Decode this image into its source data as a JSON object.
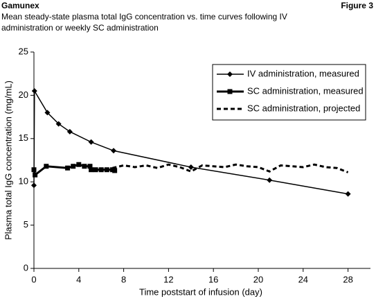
{
  "header": {
    "title": "Gamunex",
    "figure": "Figure 3",
    "subtitle": [
      "Mean steady-state plasma total IgG concentration vs. time curves following IV",
      "administration or weekly SC administration"
    ]
  },
  "chart_data": {
    "type": "line",
    "x_label": "Time poststart of infusion (day)",
    "y_label": "Plasma total IgG concentration (mg/mL)",
    "xlim": [
      0,
      30
    ],
    "xticks": [
      0,
      4,
      8,
      12,
      16,
      20,
      24,
      28
    ],
    "ylim": [
      0,
      25
    ],
    "yticks": [
      0,
      5,
      10,
      15,
      20,
      25
    ],
    "legend": "upper right",
    "series": [
      {
        "name": "IV administration, measured",
        "color": "#000000",
        "marker": "diamond",
        "dashed": false,
        "x": [
          0,
          0.05,
          1.2,
          2.2,
          3.2,
          5.1,
          7.1,
          14,
          21,
          28
        ],
        "values": [
          9.6,
          20.5,
          18,
          16.7,
          15.8,
          14.6,
          13.6,
          11.7,
          10.2,
          8.6
        ]
      },
      {
        "name": "SC administration, measured",
        "color": "#000000",
        "marker": "square",
        "dashed": false,
        "x": [
          0,
          0.1,
          1.1,
          3,
          3.5,
          4,
          4.5,
          5,
          5.1,
          5.5,
          6,
          6.5,
          7,
          7.2
        ],
        "values": [
          11.4,
          10.8,
          11.8,
          11.6,
          11.8,
          12,
          11.8,
          11.8,
          11.4,
          11.4,
          11.4,
          11.4,
          11.4,
          11.3
        ]
      },
      {
        "name": "SC administration, projected",
        "color": "#000000",
        "marker": "none",
        "dashed": true,
        "x": [
          7,
          8,
          9,
          10,
          11,
          12,
          13,
          14,
          15,
          16,
          17,
          18,
          19,
          20,
          21,
          22,
          23,
          24,
          25,
          26,
          27,
          28
        ],
        "values": [
          11.6,
          11.9,
          11.7,
          11.9,
          11.6,
          12,
          11.7,
          11.2,
          11.9,
          11.8,
          11.7,
          12,
          11.8,
          11.7,
          11.2,
          11.9,
          11.8,
          11.7,
          12,
          11.7,
          11.6,
          11.1
        ]
      }
    ]
  }
}
